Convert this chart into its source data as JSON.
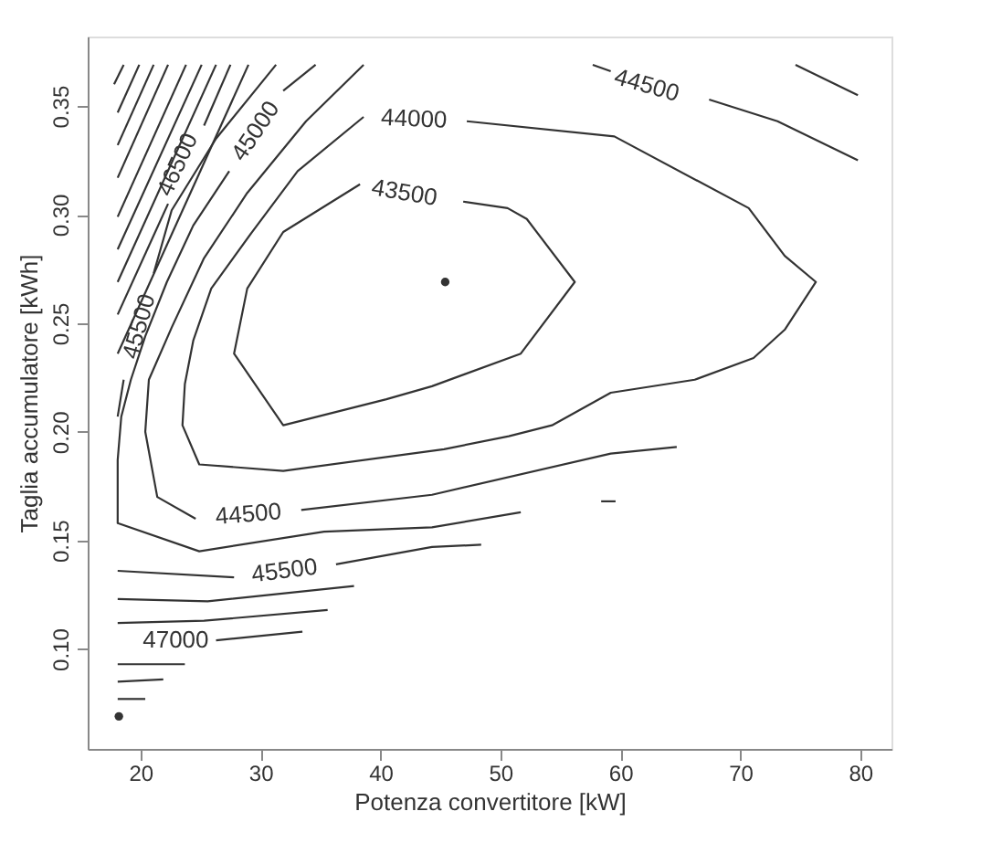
{
  "chart_data": {
    "type": "line",
    "xlabel": "Potenza convertitore [kW]",
    "ylabel": "Taglia accumulatore [kWh]",
    "xlim": [
      15.6,
      82.6
    ],
    "ylim": [
      0.054,
      0.382
    ],
    "xticks": [
      20,
      30,
      40,
      50,
      60,
      70,
      80
    ],
    "yticks": [
      {
        "value": 0.1,
        "label": "0.10"
      },
      {
        "value": 0.15,
        "label": "0.15"
      },
      {
        "value": 0.2,
        "label": "0.20"
      },
      {
        "value": 0.25,
        "label": "0.25"
      },
      {
        "value": 0.3,
        "label": "0.30"
      },
      {
        "value": 0.35,
        "label": "0.35"
      }
    ],
    "series": [
      {
        "name": "43500",
        "color": "#333333",
        "x": [
          46.9,
          50.6,
          52.2,
          56.2,
          51.7,
          44.3,
          40.5,
          31.9,
          27.8,
          28.9,
          31.9,
          38.3,
          42.0,
          46.9
        ],
        "values": [
          0.306,
          0.303,
          0.298,
          0.269,
          0.236,
          0.221,
          0.215,
          0.203,
          0.236,
          0.266,
          0.292,
          0.314,
          null,
          0.306
        ]
      },
      {
        "name": "44000",
        "color": "#333333",
        "x": [
          47.2,
          59.5,
          70.7,
          73.7,
          76.3,
          73.7,
          71.1,
          66.2,
          59.2,
          54.3,
          50.7,
          45.3,
          31.9,
          24.9,
          23.5,
          23.7,
          24.4,
          25.9,
          29.3,
          33.1,
          38.6,
          42.8,
          47.2
        ],
        "values": [
          0.343,
          0.336,
          0.303,
          0.281,
          0.269,
          0.247,
          0.234,
          0.224,
          0.218,
          0.203,
          0.198,
          0.192,
          0.182,
          0.185,
          0.203,
          0.222,
          0.242,
          0.266,
          0.292,
          0.32,
          0.345,
          null,
          0.343
        ]
      },
      {
        "color": "#333333",
        "x": [
          38.6,
          33.8,
          28.9,
          25.3,
          22.6,
          20.7,
          20.4,
          21.4,
          24.6,
          29.0,
          33.4,
          44.3,
          59.2,
          64.7
        ],
        "values": [
          0.369,
          0.343,
          0.31,
          0.28,
          0.248,
          0.224,
          0.2,
          0.17,
          0.16,
          null,
          0.164,
          0.171,
          0.19,
          0.193
        ]
      },
      {
        "name": "45000",
        "color": "#333333",
        "x": [
          34.6,
          31.9,
          29.6,
          27.4,
          24.4,
          22.2,
          20.4,
          19.2,
          18.4,
          18.1,
          18.1,
          24.9,
          35.3,
          44.3,
          51.7
        ],
        "values": [
          0.369,
          0.357,
          null,
          0.32,
          0.295,
          0.269,
          0.244,
          0.224,
          0.207,
          0.187,
          0.158,
          0.145,
          0.154,
          0.156,
          0.163
        ]
      },
      {
        "color": "#333333",
        "x": [
          58.4,
          59.6
        ],
        "values": [
          0.168,
          0.168
        ]
      },
      {
        "color": "#333333",
        "x": [
          31.3,
          26.3,
          22.6,
          21.1,
          19.9,
          18.6,
          18.1
        ],
        "values": [
          0.369,
          0.335,
          0.302,
          0.273,
          null,
          0.224,
          0.207
        ]
      },
      {
        "color": "#333333",
        "x": [
          18.1,
          27.8,
          32.0,
          36.3,
          44.3,
          48.4
        ],
        "values": [
          0.136,
          0.133,
          null,
          0.139,
          0.147,
          0.148
        ]
      },
      {
        "color": "#333333",
        "x": [
          18.1,
          25.6,
          37.8
        ],
        "values": [
          0.123,
          0.122,
          0.129
        ]
      },
      {
        "color": "#333333",
        "x": [
          18.1,
          25.3,
          35.6
        ],
        "values": [
          0.112,
          0.113,
          0.118
        ]
      },
      {
        "name": "47000",
        "color": "#333333",
        "x": [
          26.3,
          33.5
        ],
        "values": [
          0.104,
          0.108
        ]
      },
      {
        "color": "#333333",
        "x": [
          18.1,
          23.7
        ],
        "values": [
          0.093,
          0.093
        ]
      },
      {
        "color": "#333333",
        "x": [
          18.1,
          21.9
        ],
        "values": [
          0.085,
          0.086
        ]
      },
      {
        "color": "#333333",
        "x": [
          18.1,
          20.4
        ],
        "values": [
          0.077,
          0.077
        ]
      },
      {
        "type": "scatter",
        "marker": "circle",
        "color": "#333333",
        "x": [
          18.2
        ],
        "values": [
          0.069
        ]
      },
      {
        "color": "#333333",
        "x": [
          29.0,
          18.1
        ],
        "values": [
          0.369,
          0.236
        ]
      },
      {
        "name": "46500",
        "color": "#333333",
        "x": [
          27.5,
          25.3,
          23.1,
          22.3,
          18.1
        ],
        "values": [
          0.369,
          0.341,
          null,
          0.305,
          0.254
        ]
      },
      {
        "color": "#333333",
        "x": [
          26.3,
          18.1
        ],
        "values": [
          0.369,
          0.269
        ]
      },
      {
        "color": "#333333",
        "x": [
          25.1,
          18.1
        ],
        "values": [
          0.369,
          0.284
        ]
      },
      {
        "color": "#333333",
        "x": [
          23.8,
          18.1
        ],
        "values": [
          0.369,
          0.299
        ]
      },
      {
        "color": "#333333",
        "x": [
          22.3,
          18.1
        ],
        "values": [
          0.369,
          0.317
        ]
      },
      {
        "color": "#333333",
        "x": [
          21.1,
          18.1
        ],
        "values": [
          0.369,
          0.332
        ]
      },
      {
        "color": "#333333",
        "x": [
          19.9,
          18.1
        ],
        "values": [
          0.369,
          0.347
        ]
      },
      {
        "color": "#333333",
        "x": [
          18.6,
          17.8
        ],
        "values": [
          0.369,
          0.36
        ]
      },
      {
        "name": "44500",
        "color": "#333333",
        "x": [
          57.7,
          59.2,
          62.2,
          67.4,
          73.1,
          79.8
        ],
        "values": [
          0.369,
          0.366,
          null,
          0.353,
          0.343,
          0.325
        ]
      },
      {
        "color": "#333333",
        "x": [
          74.6,
          79.8
        ],
        "values": [
          0.369,
          0.355
        ]
      },
      {
        "type": "scatter",
        "marker": "circle",
        "color": "#333333",
        "x": [
          45.4
        ],
        "values": [
          0.269
        ]
      }
    ],
    "annotations": [
      "44500",
      "45500",
      "45500"
    ]
  }
}
